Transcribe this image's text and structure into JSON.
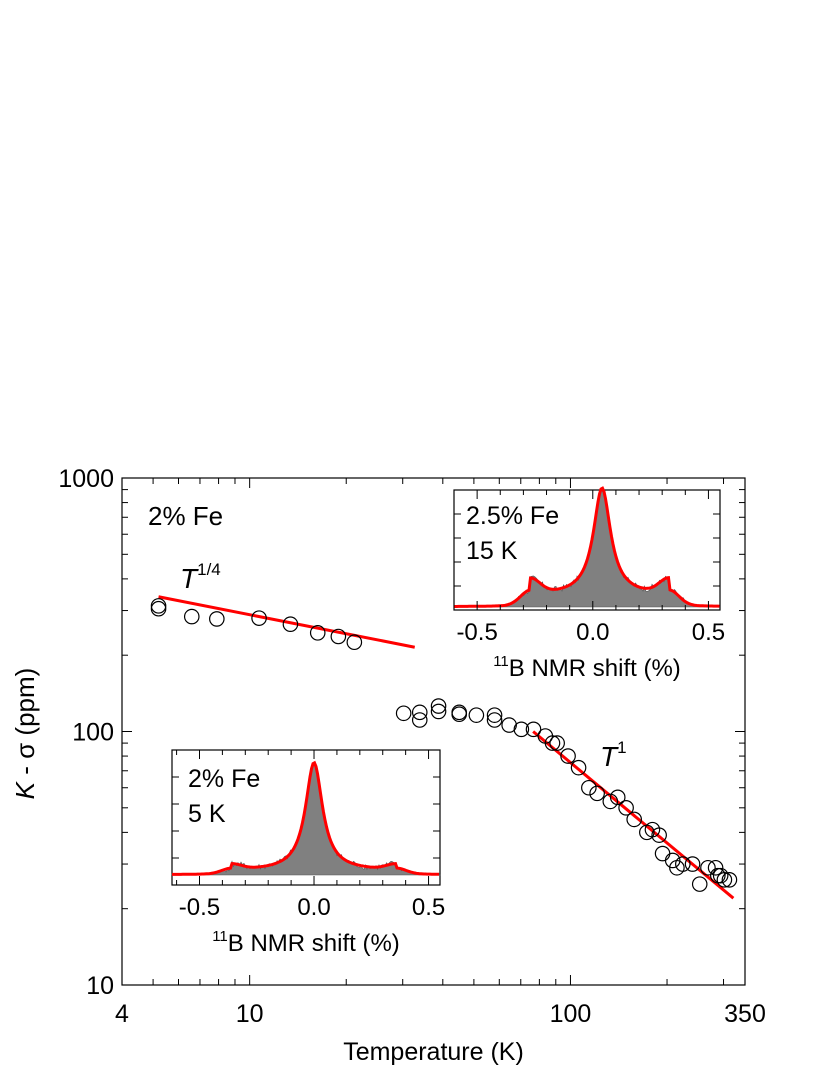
{
  "chart_data": [
    {
      "type": "scatter",
      "title": "",
      "xlabel": "Temperature (K)",
      "ylabel_italic": "K",
      "ylabel_rest": " - σ (ppm)",
      "xscale": "log",
      "yscale": "log",
      "xlim": [
        4,
        350
      ],
      "ylim": [
        10,
        1000
      ],
      "xticks": [
        {
          "value": 4,
          "label": "4"
        },
        {
          "value": 10,
          "label": "10"
        },
        {
          "value": 100,
          "label": "100"
        },
        {
          "value": 350,
          "label": "350"
        }
      ],
      "yticks": [
        {
          "value": 10,
          "label": "10"
        },
        {
          "value": 100,
          "label": "100"
        },
        {
          "value": 1000,
          "label": "1000"
        }
      ],
      "annotation": "2% Fe",
      "series": [
        {
          "marker": "open-circle",
          "x": [
            5.2,
            5.2,
            6.6,
            7.9,
            10.7,
            13.4,
            16.3,
            18.9,
            21.2,
            30.2,
            33.9,
            33.9,
            38.8,
            38.8,
            45.0,
            45.0,
            50.9,
            58.0,
            58.0,
            64.4,
            70.3,
            76.7,
            83.5,
            87.9,
            90.9,
            98.3,
            106.0,
            114.1,
            121.1,
            133.1,
            140.4,
            149.1,
            158.0,
            173.0,
            180.1,
            189.0,
            193.7,
            208.3,
            214.7,
            224.0,
            240.2,
            252.9,
            268.3,
            283.4,
            288.0,
            293.9,
            301.9,
            313.0
          ],
          "y": [
            305,
            313,
            284,
            278,
            280,
            265,
            245,
            237,
            225,
            118,
            119,
            111,
            126,
            120,
            119,
            117,
            116,
            116,
            111,
            106,
            102,
            102,
            96,
            90,
            90,
            80,
            72,
            60,
            57,
            53,
            55,
            50,
            45,
            40,
            41,
            39,
            33,
            31,
            29,
            30,
            30,
            25,
            29,
            29,
            27,
            27,
            26,
            26
          ]
        }
      ],
      "fits": [
        {
          "label_base": "T",
          "label_exp": "1/4",
          "x": [
            5.2,
            32.7
          ],
          "y": [
            340,
            215
          ]
        },
        {
          "label_base": "T",
          "label_exp": "1",
          "x": [
            76.5,
            322.0
          ],
          "y": [
            100,
            22
          ]
        }
      ],
      "fit_color": "#ff0000",
      "marker_edge_color": "#000000"
    },
    {
      "type": "area",
      "title": "",
      "xlabel_sup": "11",
      "xlabel_rest": "B NMR shift (%)",
      "xlim": [
        -0.6,
        0.55
      ],
      "xticks": [
        {
          "value": -0.5,
          "label": "-0.5"
        },
        {
          "value": 0.0,
          "label": "0.0"
        },
        {
          "value": 0.5,
          "label": "0.5"
        }
      ],
      "annotation_lines": [
        "2.5% Fe",
        "15 K"
      ],
      "fill_color": "#808080",
      "fit_color": "#ff0000",
      "fit_center": 0.04,
      "fit_peak_height": 1.0,
      "shoulder_positions": [
        -0.27,
        0.33
      ],
      "shoulder_height": 0.25
    },
    {
      "type": "area",
      "title": "",
      "xlabel_sup": "11",
      "xlabel_rest": "B NMR shift (%)",
      "xlim": [
        -0.62,
        0.55
      ],
      "xticks": [
        {
          "value": -0.5,
          "label": "-0.5"
        },
        {
          "value": 0.0,
          "label": "0.0"
        },
        {
          "value": 0.5,
          "label": "0.5"
        }
      ],
      "annotation_lines": [
        "2% Fe",
        "5 K"
      ],
      "fill_color": "#808080",
      "fit_color": "#ff0000",
      "fit_center": 0.0,
      "fit_peak_height": 1.0,
      "shoulder_positions": [
        -0.36,
        0.36
      ],
      "shoulder_height": 0.09
    }
  ]
}
